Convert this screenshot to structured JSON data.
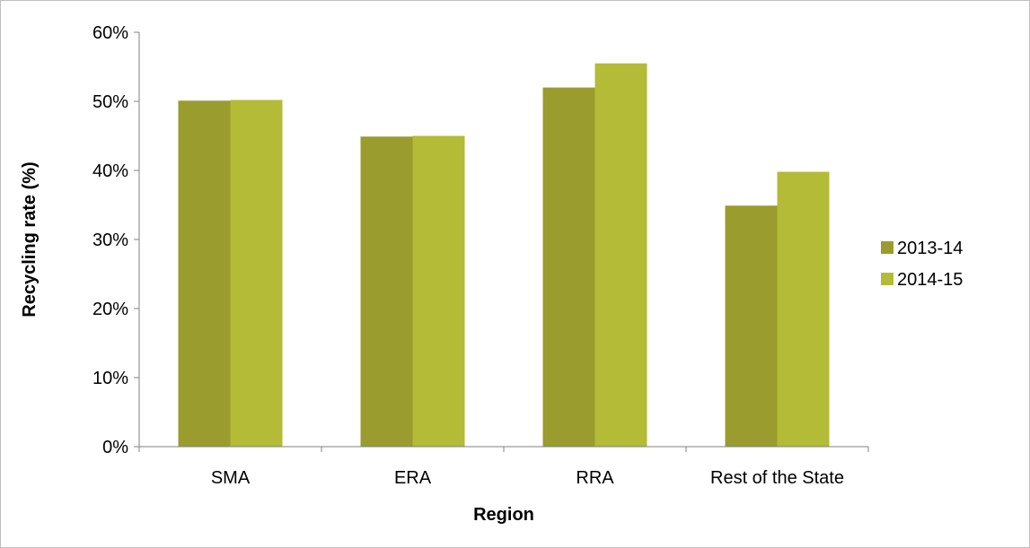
{
  "chart_data": {
    "type": "bar",
    "categories": [
      "SMA",
      "ERA",
      "RRA",
      "Rest of the State"
    ],
    "series": [
      {
        "name": "2013-14",
        "values": [
          50.1,
          44.9,
          52.0,
          34.9
        ],
        "color": "#9a9c2e"
      },
      {
        "name": "2014-15",
        "values": [
          50.2,
          45.0,
          55.5,
          39.8
        ],
        "color": "#b4bb36"
      }
    ],
    "xlabel": "Region",
    "ylabel": "Recycling rate (%)",
    "ylim": [
      0,
      60
    ],
    "ytick_step": 10,
    "ytick_labels": [
      "0%",
      "10%",
      "20%",
      "30%",
      "40%",
      "50%",
      "60%"
    ],
    "grid": false,
    "legend_position": "right"
  }
}
